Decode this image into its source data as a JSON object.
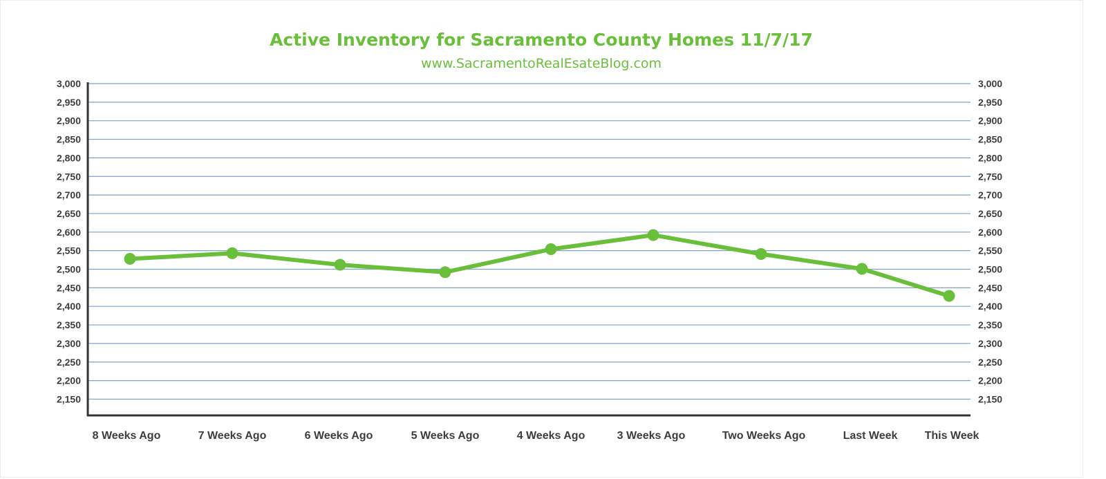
{
  "colors": {
    "accent": "#6abf3a",
    "grid": "#7da3c4",
    "axis": "#333333",
    "tick_text": "#3d3d3d"
  },
  "chart_data": {
    "type": "line",
    "title": "Active Inventory for Sacramento County Homes 11/7/17",
    "subtitle": "www.SacramentoRealEsateBlog.com",
    "xlabel": "",
    "ylabel": "",
    "categories": [
      "8 Weeks Ago",
      "7 Weeks Ago",
      "6 Weeks Ago",
      "5 Weeks Ago",
      "4 Weeks Ago",
      "3 Weeks Ago",
      "Two Weeks Ago",
      "Last Week",
      "This Week"
    ],
    "series": [
      {
        "values": [
          2528,
          2543,
          2512,
          2492,
          2554,
          2592,
          2541,
          2501,
          2428
        ]
      }
    ],
    "ylim": [
      2150,
      3000
    ],
    "y_ticks": [
      "3,000",
      "2,950",
      "2,900",
      "2,850",
      "2,800",
      "2,750",
      "2,700",
      "2,650",
      "2,600",
      "2,550",
      "2,500",
      "2,450",
      "2,400",
      "2,350",
      "2,300",
      "2,250",
      "2,200",
      "2,150"
    ],
    "y_tick_values": [
      3000,
      2950,
      2900,
      2850,
      2800,
      2750,
      2700,
      2650,
      2600,
      2550,
      2500,
      2450,
      2400,
      2350,
      2300,
      2250,
      2200,
      2150
    ],
    "secondary_y_axis": true,
    "grid": true,
    "legend": "none"
  }
}
